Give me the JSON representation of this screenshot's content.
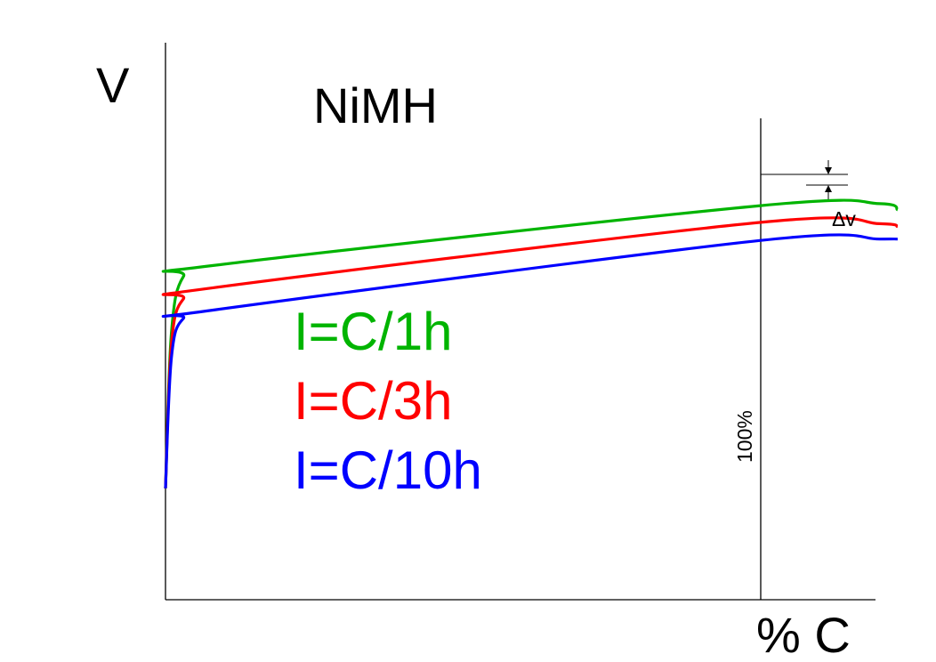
{
  "chart_data": {
    "type": "line",
    "title": "NiMH",
    "ylabel": "V",
    "xlabel": "% C",
    "marker_label": "100%",
    "delta_label": "Δv",
    "grid": false,
    "series": [
      {
        "name": "I=C/1h",
        "color": "#00b400",
        "x": [
          0,
          1,
          3,
          8,
          100,
          120,
          123
        ],
        "y": [
          4,
          9.6,
          11.6,
          12.0,
          14.15,
          14.22,
          14.0
        ]
      },
      {
        "name": "I=C/3h",
        "color": "#ff0000",
        "x": [
          0,
          1,
          3,
          8,
          100,
          120,
          123
        ],
        "y": [
          4,
          9.2,
          10.8,
          11.2,
          13.55,
          13.5,
          13.4
        ]
      },
      {
        "name": "I=C/10h",
        "color": "#0000ff",
        "x": [
          0,
          1,
          3,
          8,
          100,
          120,
          123
        ],
        "y": [
          4,
          8.7,
          10.1,
          10.4,
          12.9,
          12.95,
          12.95
        ]
      }
    ]
  }
}
